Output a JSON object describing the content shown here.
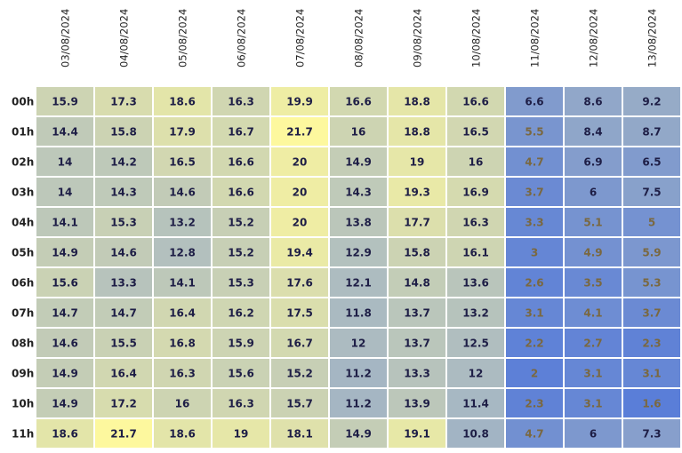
{
  "chart_data": {
    "type": "heatmap",
    "x": [
      "03/08/2024",
      "04/08/2024",
      "05/08/2024",
      "06/08/2024",
      "07/08/2024",
      "08/08/2024",
      "09/08/2024",
      "10/08/2024",
      "11/08/2024",
      "12/08/2024",
      "13/08/2024"
    ],
    "rows": [
      "00h",
      "01h",
      "02h",
      "03h",
      "04h",
      "05h",
      "06h",
      "07h",
      "08h",
      "09h",
      "10h",
      "11h"
    ],
    "values": [
      [
        15.9,
        17.3,
        18.6,
        16.3,
        19.9,
        16.6,
        18.8,
        16.6,
        6.6,
        8.6,
        9.2
      ],
      [
        14.4,
        15.8,
        17.9,
        16.7,
        21.7,
        16,
        18.8,
        16.5,
        5.5,
        8.4,
        8.7
      ],
      [
        14,
        14.2,
        16.5,
        16.6,
        20,
        14.9,
        19,
        16,
        4.7,
        6.9,
        6.5
      ],
      [
        14,
        14.3,
        14.6,
        16.6,
        20,
        14.3,
        19.3,
        16.9,
        3.7,
        6,
        7.5
      ],
      [
        14.1,
        15.3,
        13.2,
        15.2,
        20,
        13.8,
        17.7,
        16.3,
        3.3,
        5.1,
        5
      ],
      [
        14.9,
        14.6,
        12.8,
        15.2,
        19.4,
        12.9,
        15.8,
        16.1,
        3,
        4.9,
        5.9
      ],
      [
        15.6,
        13.3,
        14.1,
        15.3,
        17.6,
        12.1,
        14.8,
        13.6,
        2.6,
        3.5,
        5.3
      ],
      [
        14.7,
        14.7,
        16.4,
        16.2,
        17.5,
        11.8,
        13.7,
        13.2,
        3.1,
        4.1,
        3.7
      ],
      [
        14.6,
        15.5,
        16.8,
        15.9,
        16.7,
        12,
        13.7,
        12.5,
        2.2,
        2.7,
        2.3
      ],
      [
        14.9,
        16.4,
        16.3,
        15.6,
        15.2,
        11.2,
        13.3,
        12,
        2,
        3.1,
        3.1
      ],
      [
        14.9,
        17.2,
        16,
        16.3,
        15.7,
        11.2,
        13.9,
        11.4,
        2.3,
        3.1,
        1.6
      ],
      [
        18.6,
        21.7,
        18.6,
        19,
        18.1,
        14.9,
        19.1,
        10.8,
        4.7,
        6,
        7.3
      ]
    ],
    "colorscale": [
      "#5a7ed8",
      "#a9b9c2",
      "#fdf89e"
    ],
    "text_colors": [
      "#7a6840",
      "#1e1e46"
    ]
  }
}
